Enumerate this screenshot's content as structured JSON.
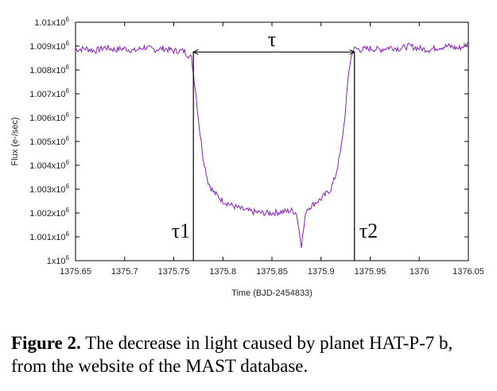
{
  "chart_data": {
    "type": "line",
    "title": "",
    "xlabel": "Time (BJD-2454833)",
    "ylabel": "Flux (e-/sec)",
    "xlim": [
      1375.65,
      1376.05
    ],
    "ylim": [
      1000000,
      1010000
    ],
    "x_ticks": [
      "1375.65",
      "1375.7",
      "1375.75",
      "1375.8",
      "1375.85",
      "1375.9",
      "1375.95",
      "1376",
      "1376.05"
    ],
    "y_ticks": [
      "1x10^6",
      "1.001x10^6",
      "1.002x10^6",
      "1.003x10^6",
      "1.004x10^6",
      "1.005x10^6",
      "1.006x10^6",
      "1.007x10^6",
      "1.008x10^6",
      "1.009x10^6",
      "1.01x10^6"
    ],
    "line_color": "#8a1fc4",
    "series": [
      {
        "x": [
          1375.65,
          1375.66,
          1375.67,
          1375.68,
          1375.69,
          1375.7,
          1375.71,
          1375.72,
          1375.73,
          1375.74,
          1375.75,
          1375.76,
          1375.768,
          1375.772,
          1375.776,
          1375.78,
          1375.785,
          1375.79,
          1375.795,
          1375.8,
          1375.81,
          1375.82,
          1375.83,
          1375.84,
          1375.85,
          1375.86,
          1375.87,
          1375.875,
          1375.88,
          1375.885,
          1375.89,
          1375.9,
          1375.91,
          1375.915,
          1375.92,
          1375.925,
          1375.928,
          1375.932,
          1375.935,
          1375.94,
          1375.95,
          1375.96,
          1375.97,
          1375.98,
          1375.99,
          1376.0,
          1376.01,
          1376.02,
          1376.03,
          1376.04,
          1376.05
        ],
        "y": [
          1008850,
          1008900,
          1008800,
          1008950,
          1008850,
          1008900,
          1008800,
          1008950,
          1008850,
          1008900,
          1008800,
          1008800,
          1008500,
          1007200,
          1005600,
          1004300,
          1003300,
          1002900,
          1002700,
          1002500,
          1002300,
          1002150,
          1002050,
          1002000,
          1002000,
          1002050,
          1002100,
          1002000,
          1000650,
          1002150,
          1002300,
          1002600,
          1003000,
          1003600,
          1004600,
          1006300,
          1007900,
          1008800,
          1008900,
          1008850,
          1008900,
          1008850,
          1008950,
          1008900,
          1009000,
          1008900,
          1008850,
          1008950,
          1009000,
          1008900,
          1009100
        ]
      }
    ],
    "annotations": [
      {
        "text": "τ",
        "x": 1375.85
      },
      {
        "text": "τ1",
        "x": 1375.77
      },
      {
        "text": "τ2",
        "x": 1375.934
      }
    ],
    "transit_level": 1008750
  },
  "caption": {
    "label": "Figure 2.",
    "text": "The decrease in light caused by planet HAT-P-7 b, from the website of the MAST database."
  }
}
